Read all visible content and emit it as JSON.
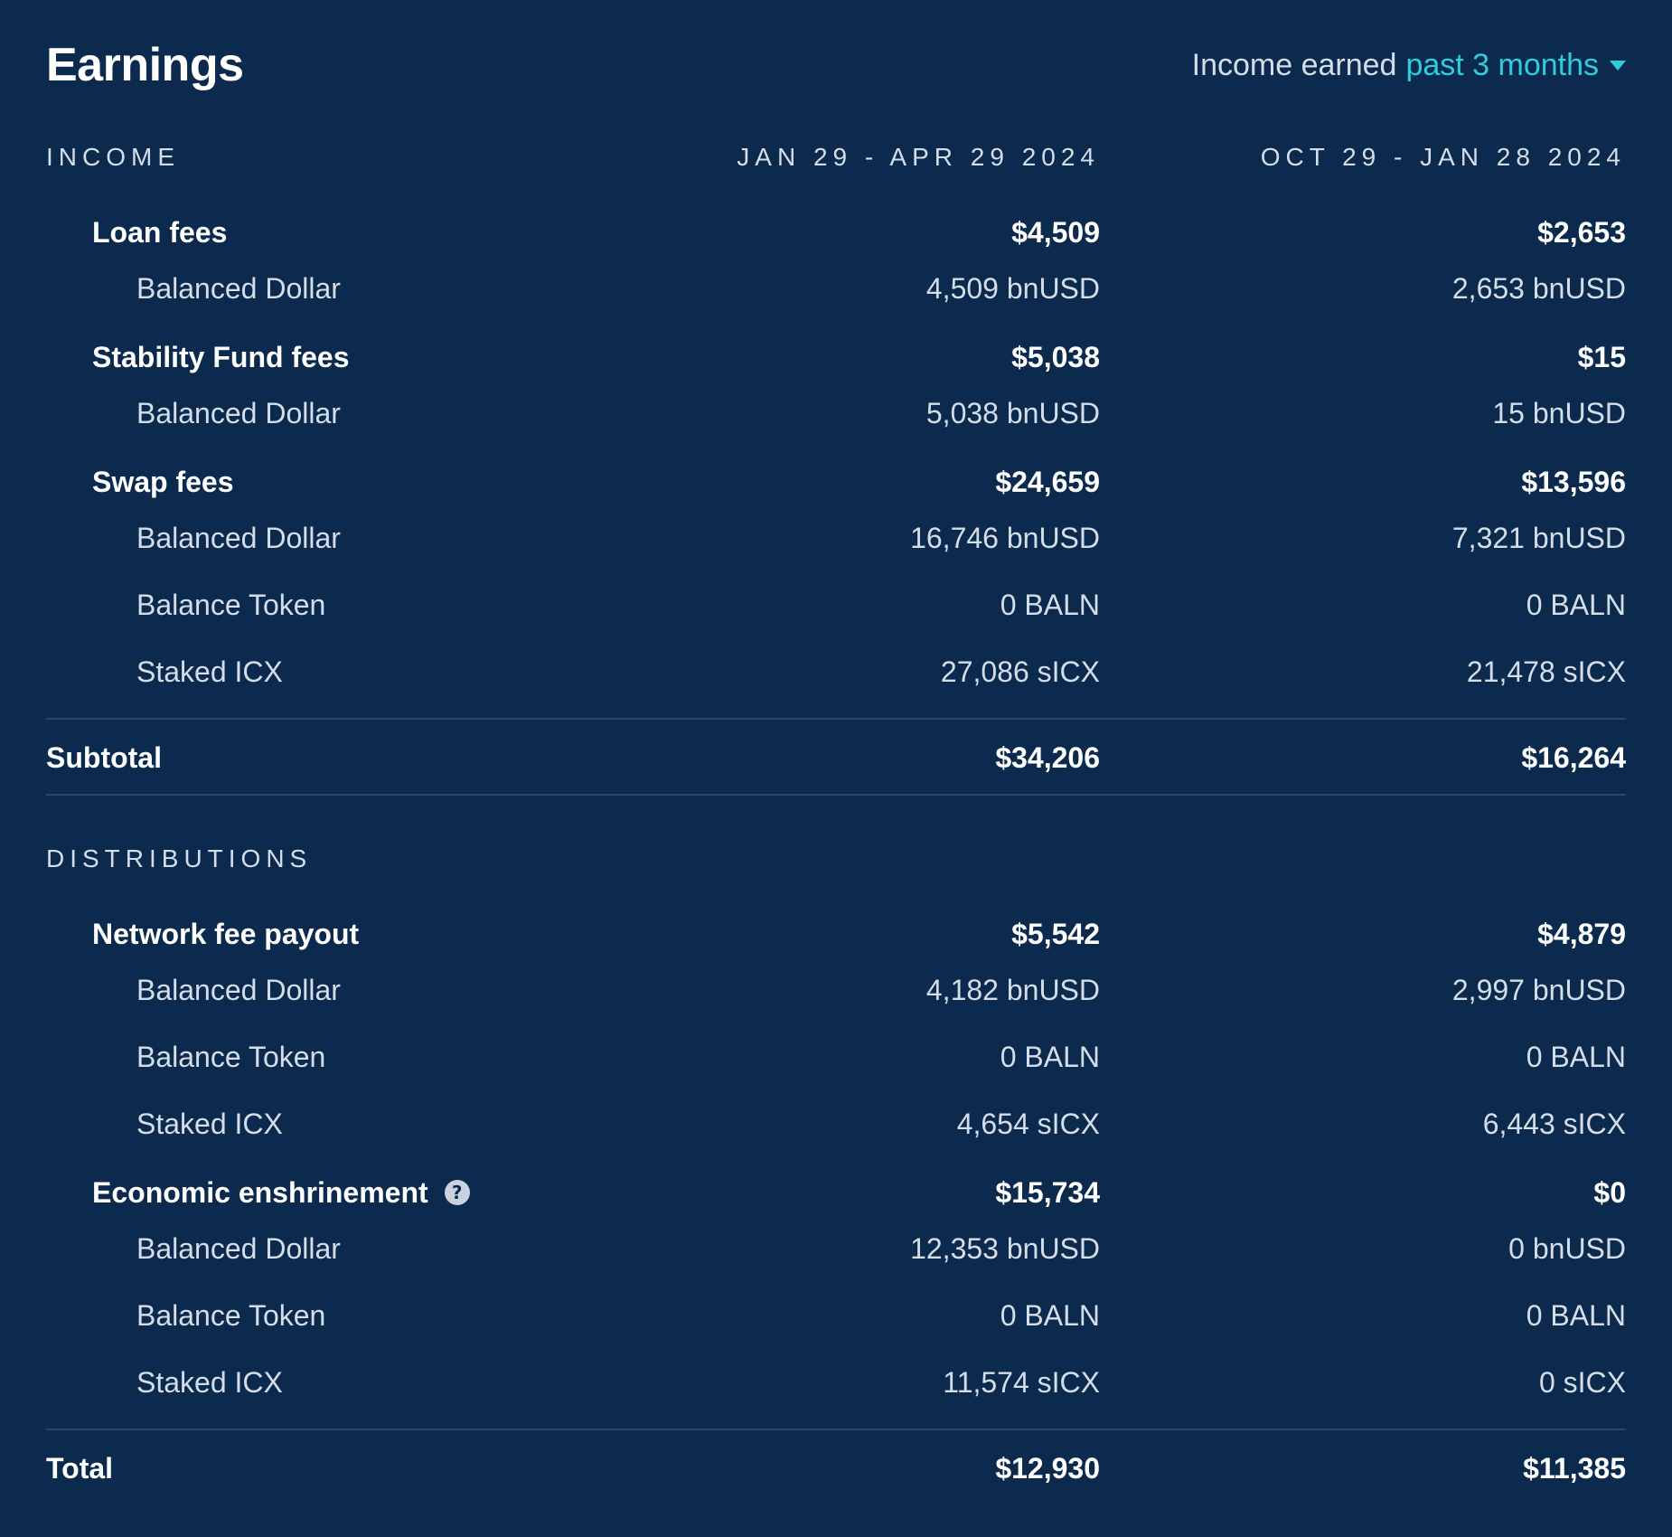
{
  "header": {
    "title": "Earnings",
    "period_label": "Income earned",
    "period_value": "past 3 months",
    "caret_icon": "caret-down-icon",
    "accent_color": "#2fccdc",
    "background_color": "#0c2a4d"
  },
  "income": {
    "heading": "INCOME",
    "col1": "JAN 29 - APR 29 2024",
    "col2": "OCT 29 - JAN 28 2024",
    "groups": [
      {
        "label": "Loan fees",
        "v1": "$4,509",
        "v2": "$2,653",
        "items": [
          {
            "label": "Balanced Dollar",
            "v1": "4,509 bnUSD",
            "v2": "2,653 bnUSD"
          }
        ]
      },
      {
        "label": "Stability Fund fees",
        "v1": "$5,038",
        "v2": "$15",
        "items": [
          {
            "label": "Balanced Dollar",
            "v1": "5,038 bnUSD",
            "v2": "15 bnUSD"
          }
        ]
      },
      {
        "label": "Swap fees",
        "v1": "$24,659",
        "v2": "$13,596",
        "items": [
          {
            "label": "Balanced Dollar",
            "v1": "16,746 bnUSD",
            "v2": "7,321 bnUSD"
          },
          {
            "label": "Balance Token",
            "v1": "0 BALN",
            "v2": "0 BALN"
          },
          {
            "label": "Staked ICX",
            "v1": "27,086 sICX",
            "v2": "21,478 sICX"
          }
        ]
      }
    ],
    "subtotal": {
      "label": "Subtotal",
      "v1": "$34,206",
      "v2": "$16,264"
    }
  },
  "distributions": {
    "heading": "DISTRIBUTIONS",
    "groups": [
      {
        "label": "Network fee payout",
        "v1": "$5,542",
        "v2": "$4,879",
        "items": [
          {
            "label": "Balanced Dollar",
            "v1": "4,182 bnUSD",
            "v2": "2,997 bnUSD"
          },
          {
            "label": "Balance Token",
            "v1": "0 BALN",
            "v2": "0 BALN"
          },
          {
            "label": "Staked ICX",
            "v1": "4,654 sICX",
            "v2": "6,443 sICX"
          }
        ]
      },
      {
        "label": "Economic enshrinement",
        "v1": "$15,734",
        "v2": "$0",
        "help_icon": "question-mark-icon",
        "items": [
          {
            "label": "Balanced Dollar",
            "v1": "12,353 bnUSD",
            "v2": "0 bnUSD"
          },
          {
            "label": "Balance Token",
            "v1": "0 BALN",
            "v2": "0 BALN"
          },
          {
            "label": "Staked ICX",
            "v1": "11,574 sICX",
            "v2": "0 sICX"
          }
        ]
      }
    ],
    "total": {
      "label": "Total",
      "v1": "$12,930",
      "v2": "$11,385"
    }
  }
}
